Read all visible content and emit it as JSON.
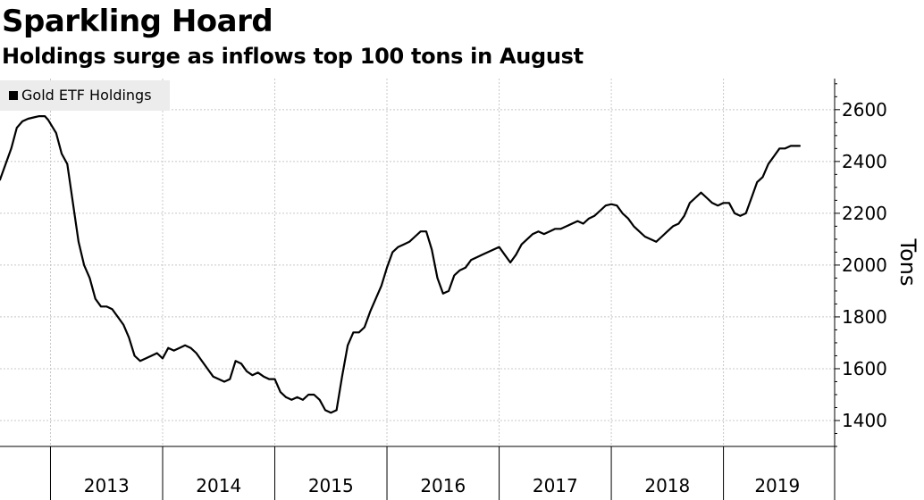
{
  "header": {
    "title": "Sparkling Hoard",
    "subtitle": "Holdings surge as inflows top 100 tons in August"
  },
  "chart_data": {
    "type": "line",
    "title": "Sparkling Hoard",
    "subtitle": "Holdings surge as inflows top 100 tons in August",
    "xlabel": "",
    "ylabel": "Tons",
    "ylim": [
      1300,
      2720
    ],
    "xlim": [
      2012.55,
      2019.8
    ],
    "y_ticks": [
      1400,
      1600,
      1800,
      2000,
      2200,
      2400,
      2600
    ],
    "x_tick_labels": [
      "2013",
      "2014",
      "2015",
      "2016",
      "2017",
      "2018",
      "2019"
    ],
    "grid": true,
    "legend_position": "top-left",
    "series": [
      {
        "name": "Gold ETF Holdings",
        "color": "#000000",
        "x": [
          2012.55,
          2012.6,
          2012.65,
          2012.7,
          2012.75,
          2012.8,
          2012.85,
          2012.9,
          2012.95,
          2012.98,
          2013.05,
          2013.1,
          2013.15,
          2013.2,
          2013.25,
          2013.3,
          2013.35,
          2013.4,
          2013.45,
          2013.5,
          2013.55,
          2013.6,
          2013.65,
          2013.7,
          2013.75,
          2013.8,
          2013.85,
          2013.9,
          2013.95,
          2014.0,
          2014.05,
          2014.1,
          2014.15,
          2014.2,
          2014.25,
          2014.3,
          2014.35,
          2014.4,
          2014.45,
          2014.5,
          2014.55,
          2014.6,
          2014.65,
          2014.7,
          2014.75,
          2014.8,
          2014.85,
          2014.9,
          2014.95,
          2015.0,
          2015.05,
          2015.1,
          2015.15,
          2015.2,
          2015.25,
          2015.3,
          2015.35,
          2015.4,
          2015.45,
          2015.5,
          2015.55,
          2015.6,
          2015.65,
          2015.7,
          2015.75,
          2015.8,
          2015.85,
          2015.9,
          2015.95,
          2016.0,
          2016.05,
          2016.1,
          2016.15,
          2016.2,
          2016.25,
          2016.3,
          2016.35,
          2016.4,
          2016.45,
          2016.5,
          2016.55,
          2016.6,
          2016.65,
          2016.7,
          2016.75,
          2016.8,
          2016.85,
          2016.9,
          2016.95,
          2017.0,
          2017.05,
          2017.1,
          2017.15,
          2017.2,
          2017.25,
          2017.3,
          2017.35,
          2017.4,
          2017.45,
          2017.5,
          2017.55,
          2017.6,
          2017.65,
          2017.7,
          2017.75,
          2017.8,
          2017.85,
          2017.9,
          2017.95,
          2018.0,
          2018.05,
          2018.1,
          2018.15,
          2018.2,
          2018.25,
          2018.3,
          2018.35,
          2018.4,
          2018.45,
          2018.5,
          2018.55,
          2018.6,
          2018.65,
          2018.7,
          2018.75,
          2018.8,
          2018.85,
          2018.9,
          2018.95,
          2019.0,
          2019.05,
          2019.1,
          2019.15,
          2019.2,
          2019.25,
          2019.3,
          2019.35,
          2019.4,
          2019.45,
          2019.5,
          2019.55,
          2019.6,
          2019.65,
          2019.68
        ],
        "values": [
          2330,
          2390,
          2450,
          2530,
          2555,
          2565,
          2570,
          2575,
          2575,
          2560,
          2510,
          2430,
          2390,
          2240,
          2090,
          2000,
          1950,
          1870,
          1840,
          1840,
          1830,
          1800,
          1770,
          1720,
          1650,
          1630,
          1640,
          1650,
          1660,
          1640,
          1680,
          1670,
          1680,
          1690,
          1680,
          1660,
          1630,
          1600,
          1570,
          1560,
          1550,
          1560,
          1630,
          1620,
          1590,
          1575,
          1585,
          1570,
          1560,
          1560,
          1510,
          1490,
          1480,
          1490,
          1480,
          1500,
          1500,
          1480,
          1440,
          1430,
          1440,
          1570,
          1690,
          1740,
          1740,
          1760,
          1820,
          1870,
          1920,
          1990,
          2050,
          2070,
          2080,
          2090,
          2110,
          2130,
          2130,
          2060,
          1950,
          1890,
          1900,
          1960,
          1980,
          1990,
          2020,
          2030,
          2040,
          2050,
          2060,
          2070,
          2040,
          2010,
          2040,
          2080,
          2100,
          2120,
          2130,
          2120,
          2130,
          2140,
          2140,
          2150,
          2160,
          2170,
          2160,
          2180,
          2190,
          2210,
          2230,
          2235,
          2230,
          2200,
          2180,
          2150,
          2130,
          2110,
          2100,
          2090,
          2110,
          2130,
          2150,
          2160,
          2190,
          2240,
          2260,
          2280,
          2260,
          2240,
          2230,
          2240,
          2240,
          2200,
          2190,
          2200,
          2260,
          2320,
          2340,
          2390,
          2420,
          2450,
          2450,
          2460,
          2460,
          2460
        ]
      }
    ]
  }
}
